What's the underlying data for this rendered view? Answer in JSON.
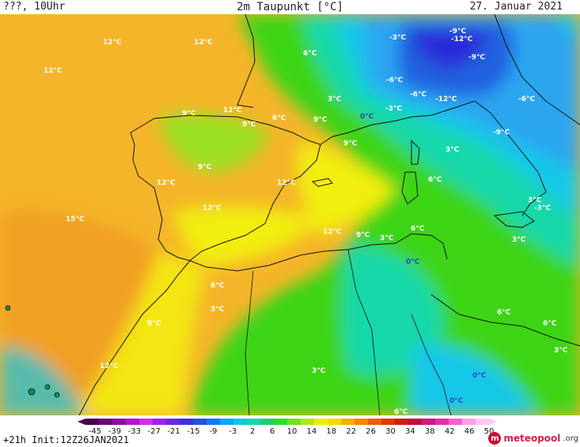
{
  "header": {
    "location": "???, 10Uhr",
    "title": "2m Taupunkt [°C]",
    "date": "27. Januar 2021"
  },
  "map": {
    "labels": [
      {
        "text": "12°C",
        "color": "white"
      },
      {
        "text": "12°C",
        "color": "white"
      },
      {
        "text": "12°C",
        "color": "white"
      },
      {
        "text": "6°C",
        "color": "white"
      },
      {
        "text": "-3°C",
        "color": "white"
      },
      {
        "text": "-9°C",
        "color": "white"
      },
      {
        "text": "-12°C",
        "color": "white"
      },
      {
        "text": "-9°C",
        "color": "white"
      },
      {
        "text": "-6°C",
        "color": "white"
      },
      {
        "text": "-6°C",
        "color": "white"
      },
      {
        "text": "-12°C",
        "color": "white"
      },
      {
        "text": "-3°C",
        "color": "white"
      },
      {
        "text": "3°C",
        "color": "white"
      },
      {
        "text": "0°C",
        "color": "blue"
      },
      {
        "text": "-6°C",
        "color": "white"
      },
      {
        "text": "9°C",
        "color": "white"
      },
      {
        "text": "12°C",
        "color": "white"
      },
      {
        "text": "6°C",
        "color": "white"
      },
      {
        "text": "9°C",
        "color": "white"
      },
      {
        "text": "9°C",
        "color": "white"
      },
      {
        "text": "-9°C",
        "color": "white"
      },
      {
        "text": "9°C",
        "color": "white"
      },
      {
        "text": "3°C",
        "color": "white"
      },
      {
        "text": "9°C",
        "color": "white"
      },
      {
        "text": "12°C",
        "color": "white"
      },
      {
        "text": "6°C",
        "color": "white"
      },
      {
        "text": "12°C",
        "color": "white"
      },
      {
        "text": "12°C",
        "color": "white"
      },
      {
        "text": "15°C",
        "color": "white"
      },
      {
        "text": "3°C",
        "color": "white"
      },
      {
        "text": "-3°C",
        "color": "white"
      },
      {
        "text": "12°C",
        "color": "white"
      },
      {
        "text": "9°C",
        "color": "white"
      },
      {
        "text": "3°C",
        "color": "white"
      },
      {
        "text": "6°C",
        "color": "white"
      },
      {
        "text": "3°C",
        "color": "white"
      },
      {
        "text": "0°C",
        "color": "blue"
      },
      {
        "text": "6°C",
        "color": "white"
      },
      {
        "text": "3°C",
        "color": "white"
      },
      {
        "text": "9°C",
        "color": "white"
      },
      {
        "text": "6°C",
        "color": "white"
      },
      {
        "text": "6°C",
        "color": "white"
      },
      {
        "text": "3°C",
        "color": "white"
      },
      {
        "text": "12°C",
        "color": "white"
      },
      {
        "text": "3°C",
        "color": "white"
      },
      {
        "text": "0°C",
        "color": "blue"
      },
      {
        "text": "0°C",
        "color": "blue"
      },
      {
        "text": "6°C",
        "color": "white"
      }
    ]
  },
  "legend": {
    "ticks": [
      "-45",
      "-39",
      "-33",
      "-27",
      "-21",
      "-15",
      "-9",
      "-3",
      "2",
      "6",
      "10",
      "14",
      "18",
      "22",
      "26",
      "30",
      "34",
      "38",
      "42",
      "46",
      "50"
    ],
    "colors": [
      "#4a0046",
      "#6a0a78",
      "#8a10a0",
      "#b018c8",
      "#d030e0",
      "#a020f0",
      "#6a28e8",
      "#3a30e0",
      "#2050e8",
      "#1a78f0",
      "#10a8f0",
      "#10c8e0",
      "#10d8b0",
      "#18d070",
      "#30d830",
      "#70e020",
      "#b0e810",
      "#e8f000",
      "#f8d800",
      "#f8b000",
      "#f08800",
      "#e86000",
      "#e03800",
      "#d81818",
      "#c80840",
      "#d01880",
      "#e030b0",
      "#f060d0",
      "#f8a0e8",
      "#ffc8f4"
    ]
  },
  "footer": {
    "run": "+21h Init:12Z26JAN2021"
  },
  "logo": {
    "name": "meteopool",
    "domain": ".org",
    "brand_color": "#d11f4b"
  },
  "palette": {
    "deep_orange": "#f0a020",
    "orange": "#f5b52a",
    "yellow": "#f2ee10",
    "light_green": "#9ce020",
    "green": "#3ed418",
    "aqua": "#18d8a8",
    "cyan": "#18c8e8",
    "sky": "#2aa6f0",
    "blue": "#2060e0",
    "deep_blue": "#2a2ad8"
  }
}
